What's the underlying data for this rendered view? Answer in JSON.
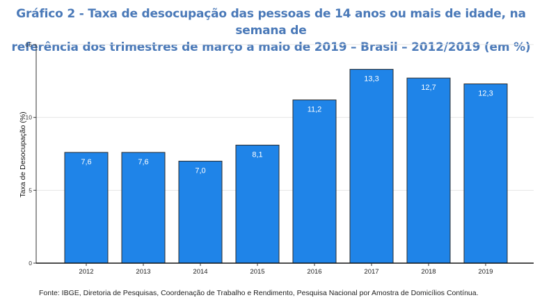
{
  "title_line1": "Gráfico 2 - Taxa de desocupação das pessoas de 14 anos ou mais de idade, na semana de",
  "title_line2": "referência dos trimestres de março a maio de 2019 – Brasil – 2012/2019 (em %)",
  "source": "Fonte: IBGE, Diretoria de Pesquisas, Coordenação de Trabalho e Rendimento, Pesquisa Nacional por Amostra de Domicílios Contínua.",
  "colors": {
    "bar": "#1f84e8",
    "bar_stroke": "#2b2b2b",
    "title": "#4a79b8",
    "grid": "#e6e6e6",
    "axis": "#333333"
  },
  "chart_data": {
    "type": "bar",
    "categories": [
      "2012",
      "2013",
      "2014",
      "2015",
      "2016",
      "2017",
      "2018",
      "2019"
    ],
    "values": [
      7.6,
      7.6,
      7.0,
      8.1,
      11.2,
      13.3,
      12.7,
      12.3
    ],
    "data_labels": [
      "7,6",
      "7,6",
      "7,0",
      "8,1",
      "11,2",
      "13,3",
      "12,7",
      "12,3"
    ],
    "ylabel": "Taxa de Desocupação (%)",
    "xlabel": "",
    "ylim": [
      0,
      15
    ],
    "yticks": [
      0,
      5,
      10,
      15
    ],
    "grid": true
  }
}
